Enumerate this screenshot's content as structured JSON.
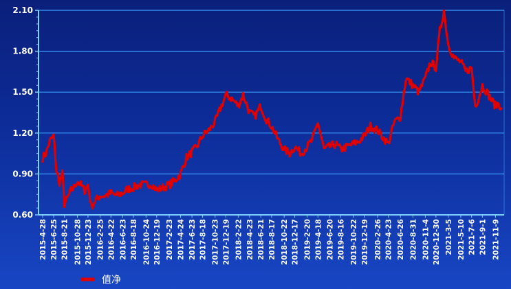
{
  "chart_data": {
    "type": "line",
    "title": "",
    "xlabel": "",
    "ylabel": "",
    "ylim": [
      0.6,
      2.1
    ],
    "y_ticks": [
      "0.60",
      "0.90",
      "1.20",
      "1.50",
      "1.80",
      "2.10"
    ],
    "x_tick_labels": [
      "2015-4-28",
      "2015-6-25",
      "2015-8-21",
      "2015-10-28",
      "2015-12-23",
      "2016-2-25",
      "2016-4-22",
      "2016-6-23",
      "2016-8-18",
      "2016-10-24",
      "2016-12-19",
      "2017-2-23",
      "2017-4-24",
      "2017-6-23",
      "2017-8-18",
      "2017-10-23",
      "2017-12-19",
      "2018-2-22",
      "2018-4-23",
      "2018-6-21",
      "2018-8-17",
      "2018-10-22",
      "2018-12-17",
      "2019-2-20",
      "2019-4-18",
      "2019-6-20",
      "2019-8-16",
      "2019-10-22",
      "2019-12-19",
      "2020-2-26",
      "2020-4-23",
      "2020-6-26",
      "2020-8-31",
      "2020-11-4",
      "2020-12-30",
      "2021-3-5",
      "2021-5-10",
      "2021-7-6",
      "2021-9-1",
      "2021-11-9"
    ],
    "grid": true,
    "legend_position": "bottom-left",
    "colors": {
      "line": "#e00000",
      "grid": "#3aa0ff",
      "axis": "#7fd0ff",
      "text": "#ffffff"
    },
    "series": [
      {
        "name": "值净",
        "x": [
          "2015-4-28",
          "2015-5-15",
          "2015-6-5",
          "2015-6-25",
          "2015-7-10",
          "2015-7-25",
          "2015-8-10",
          "2015-8-21",
          "2015-9-5",
          "2015-9-25",
          "2015-10-10",
          "2015-10-28",
          "2015-11-15",
          "2015-12-5",
          "2015-12-23",
          "2016-1-10",
          "2016-1-28",
          "2016-2-25",
          "2016-3-20",
          "2016-4-22",
          "2016-5-20",
          "2016-6-23",
          "2016-7-20",
          "2016-8-18",
          "2016-9-20",
          "2016-10-24",
          "2016-11-20",
          "2016-12-19",
          "2017-1-20",
          "2017-2-23",
          "2017-3-25",
          "2017-4-24",
          "2017-5-25",
          "2017-6-23",
          "2017-7-20",
          "2017-8-18",
          "2017-9-20",
          "2017-10-23",
          "2017-11-20",
          "2017-12-19",
          "2018-1-20",
          "2018-2-22",
          "2018-3-20",
          "2018-4-23",
          "2018-5-20",
          "2018-6-21",
          "2018-7-20",
          "2018-8-17",
          "2018-9-20",
          "2018-10-22",
          "2018-11-20",
          "2018-12-17",
          "2019-1-20",
          "2019-2-20",
          "2019-3-20",
          "2019-4-18",
          "2019-5-20",
          "2019-6-20",
          "2019-7-20",
          "2019-8-16",
          "2019-9-20",
          "2019-10-22",
          "2019-11-20",
          "2019-12-19",
          "2020-1-20",
          "2020-2-26",
          "2020-3-20",
          "2020-4-23",
          "2020-5-25",
          "2020-6-26",
          "2020-7-25",
          "2020-8-31",
          "2020-10-1",
          "2020-11-4",
          "2020-12-1",
          "2020-12-30",
          "2021-1-20",
          "2021-2-10",
          "2021-3-5",
          "2021-4-5",
          "2021-5-10",
          "2021-6-5",
          "2021-7-6",
          "2021-7-25",
          "2021-8-10",
          "2021-9-1",
          "2021-9-25",
          "2021-10-15",
          "2021-11-9",
          "2021-11-25",
          "2021-12-10"
        ],
        "values": [
          1.02,
          1.05,
          1.14,
          1.18,
          0.92,
          0.84,
          0.9,
          0.68,
          0.72,
          0.78,
          0.8,
          0.85,
          0.82,
          0.78,
          0.82,
          0.66,
          0.7,
          0.74,
          0.74,
          0.76,
          0.74,
          0.76,
          0.79,
          0.8,
          0.82,
          0.82,
          0.83,
          0.78,
          0.8,
          0.82,
          0.85,
          0.9,
          1.02,
          1.06,
          1.1,
          1.18,
          1.22,
          1.28,
          1.38,
          1.48,
          1.45,
          1.4,
          1.48,
          1.35,
          1.32,
          1.4,
          1.3,
          1.25,
          1.15,
          1.08,
          1.05,
          1.1,
          1.05,
          1.1,
          1.15,
          1.28,
          1.08,
          1.1,
          1.12,
          1.08,
          1.1,
          1.12,
          1.14,
          1.18,
          1.25,
          1.22,
          1.18,
          1.12,
          1.28,
          1.32,
          1.6,
          1.55,
          1.5,
          1.6,
          1.72,
          1.68,
          1.95,
          2.1,
          1.85,
          1.75,
          1.72,
          1.65,
          1.68,
          1.4,
          1.45,
          1.55,
          1.5,
          1.45,
          1.4,
          1.42,
          1.38
        ]
      }
    ]
  }
}
